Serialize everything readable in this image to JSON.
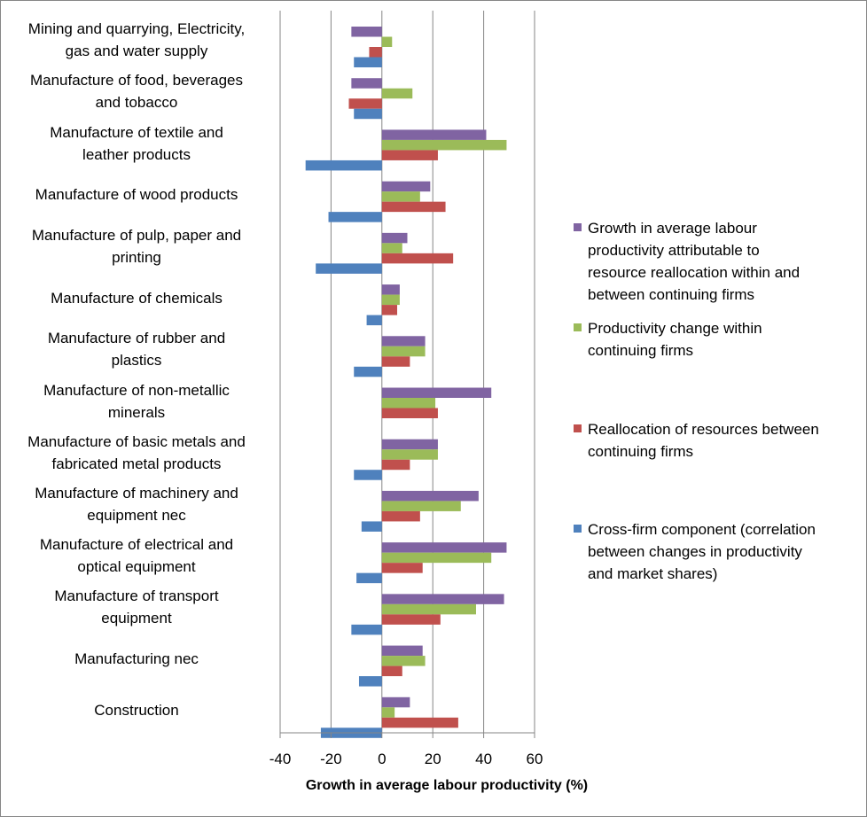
{
  "chart_data": {
    "type": "bar",
    "orientation": "horizontal",
    "categories": [
      [
        "Mining and quarrying, Electricity,",
        "gas and water supply"
      ],
      [
        "Manufacture of food, beverages",
        "and tobacco"
      ],
      [
        "Manufacture of textile and",
        "leather products"
      ],
      [
        "Manufacture of wood products"
      ],
      [
        "Manufacture of pulp, paper and",
        "printing"
      ],
      [
        "Manufacture of chemicals"
      ],
      [
        "Manufacture of rubber and",
        "plastics"
      ],
      [
        "Manufacture of non-metallic",
        "minerals"
      ],
      [
        "Manufacture of basic metals and",
        "fabricated metal products"
      ],
      [
        "Manufacture of machinery and",
        "equipment nec"
      ],
      [
        "Manufacture of electrical and",
        "optical equipment"
      ],
      [
        "Manufacture of transport",
        "equipment"
      ],
      [
        "Manufacturing nec"
      ],
      [
        "Construction"
      ]
    ],
    "series": [
      {
        "name": [
          "Growth in average labour",
          "productivity attributable to",
          "resource reallocation within and",
          "between continuing firms"
        ],
        "color": "#8064A2",
        "values": [
          -12,
          -12,
          41,
          19,
          10,
          7,
          17,
          43,
          22,
          38,
          49,
          48,
          16,
          11
        ]
      },
      {
        "name": [
          "Productivity change within",
          "continuing firms"
        ],
        "color": "#9BBB59",
        "values": [
          4,
          12,
          49,
          15,
          8,
          7,
          17,
          21,
          22,
          31,
          43,
          37,
          17,
          5
        ]
      },
      {
        "name": [
          "Reallocation of resources between",
          "continuing firms"
        ],
        "color": "#C0504D",
        "values": [
          -5,
          -13,
          22,
          25,
          28,
          6,
          11,
          22,
          11,
          15,
          16,
          23,
          8,
          30
        ]
      },
      {
        "name": [
          "Cross-firm component (correlation",
          "between changes in productivity",
          "and market shares)"
        ],
        "color": "#4F81BD",
        "values": [
          -11,
          -11,
          -30,
          -21,
          -26,
          -6,
          -11,
          0,
          -11,
          -8,
          -10,
          -12,
          -9,
          -24
        ]
      }
    ],
    "xlabel": "Growth in average labour productivity (%)",
    "xlim": [
      -40,
      60
    ],
    "xticks": [
      -40,
      -20,
      0,
      20,
      40,
      60
    ],
    "grid": true,
    "legend": "right"
  }
}
